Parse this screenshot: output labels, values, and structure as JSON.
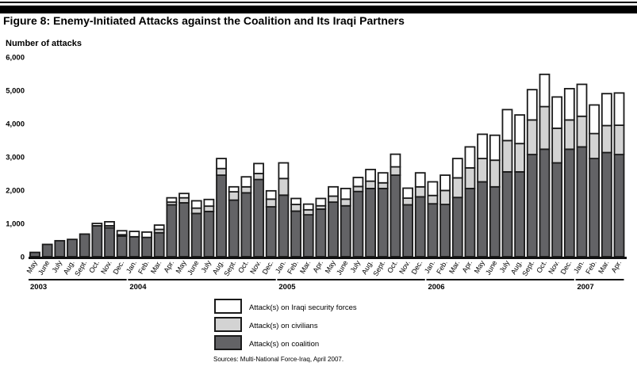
{
  "title": "Figure 8: Enemy-Initiated Attacks against the Coalition and Its Iraqi Partners",
  "source": "Sources: Multi-National Force-Iraq, April 2007.",
  "colors": {
    "iraqi_security_forces": "#ffffff",
    "civilians": "#d3d3d3",
    "coalition": "#636366",
    "outline": "#1a1a1a"
  },
  "chart_data": {
    "type": "bar",
    "stacked": true,
    "ylabel": "Number of attacks",
    "ylim": [
      0,
      6000
    ],
    "yticks": [
      "0",
      "1,000",
      "2,000",
      "3,000",
      "4,000",
      "5,000",
      "6,000"
    ],
    "grid": false,
    "legend_position": "bottom-center",
    "categories": [
      "May",
      "June",
      "July",
      "Aug.",
      "Sept.",
      "Oct.",
      "Nov.",
      "Dec.",
      "Jan.",
      "Feb.",
      "Mar.",
      "Apr.",
      "May",
      "June",
      "July",
      "Aug.",
      "Sept.",
      "Oct.",
      "Nov.",
      "Dec.",
      "Jan.",
      "Feb.",
      "Mar.",
      "Apr.",
      "May",
      "June",
      "July",
      "Aug.",
      "Sept.",
      "Oct.",
      "Nov.",
      "Dec.",
      "Jan.",
      "Feb.",
      "Mar.",
      "Apr.",
      "May",
      "June",
      "July",
      "Aug.",
      "Sept.",
      "Oct.",
      "Nov.",
      "Dec.",
      "Jan.",
      "Feb.",
      "Mar.",
      "Apr."
    ],
    "years": [
      {
        "label": "2003",
        "months": 8
      },
      {
        "label": "2004",
        "months": 12
      },
      {
        "label": "2005",
        "months": 12
      },
      {
        "label": "2006",
        "months": 12
      },
      {
        "label": "2007",
        "months": 4
      }
    ],
    "series": [
      {
        "name": "Attack(s) on coalition",
        "color": "#636366",
        "values": [
          130,
          370,
          480,
          520,
          680,
          930,
          870,
          620,
          600,
          580,
          720,
          1560,
          1620,
          1300,
          1360,
          2450,
          1700,
          1920,
          2320,
          1500,
          1850,
          1370,
          1260,
          1430,
          1640,
          1530,
          1960,
          2050,
          2050,
          2450,
          1560,
          1800,
          1590,
          1570,
          1780,
          2050,
          2250,
          2100,
          2550,
          2550,
          3070,
          3230,
          2820,
          3230,
          3300,
          2950,
          3130,
          3070
        ]
      },
      {
        "name": "Attack(s) on civilians",
        "color": "#d3d3d3",
        "values": [
          0,
          0,
          0,
          0,
          0,
          0,
          60,
          40,
          0,
          0,
          100,
          80,
          150,
          160,
          160,
          200,
          250,
          180,
          180,
          230,
          500,
          200,
          150,
          100,
          180,
          200,
          150,
          220,
          170,
          250,
          200,
          300,
          250,
          420,
          590,
          620,
          700,
          800,
          940,
          850,
          1040,
          1280,
          1040,
          880,
          920,
          750,
          810,
          880
        ]
      },
      {
        "name": "Attack(s) on Iraqi security forces",
        "color": "#ffffff",
        "values": [
          0,
          0,
          0,
          0,
          0,
          70,
          120,
          120,
          160,
          160,
          130,
          130,
          130,
          220,
          200,
          300,
          150,
          300,
          300,
          250,
          470,
          180,
          170,
          220,
          280,
          320,
          270,
          350,
          300,
          380,
          300,
          420,
          410,
          460,
          580,
          630,
          730,
          750,
          930,
          860,
          910,
          970,
          940,
          940,
          960,
          860,
          960,
          970
        ]
      }
    ]
  }
}
